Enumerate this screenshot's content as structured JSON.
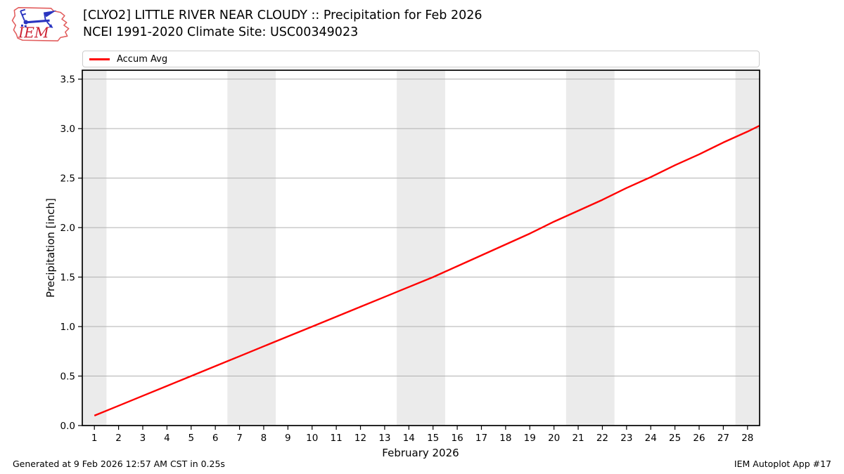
{
  "header": {
    "logo_text": "IEM"
  },
  "legend": {
    "items": [
      {
        "label": "Accum Avg",
        "color": "#ff0000"
      }
    ]
  },
  "footer": {
    "generated": "Generated at 9 Feb 2026 12:57 AM CST in 0.25s",
    "app": "IEM Autoplot App #17"
  },
  "chart_data": {
    "type": "line",
    "title": "[CLYO2] LITTLE RIVER NEAR CLOUDY :: Precipitation for Feb 2026",
    "subtitle": "NCEI 1991-2020 Climate Site: USC00349023",
    "xlabel": "February 2026",
    "ylabel": "Precipitation [inch]",
    "xlim": [
      0.5,
      28.5
    ],
    "ylim": [
      0,
      3.59
    ],
    "xticks": [
      1,
      2,
      3,
      4,
      5,
      6,
      7,
      8,
      9,
      10,
      11,
      12,
      13,
      14,
      15,
      16,
      17,
      18,
      19,
      20,
      21,
      22,
      23,
      24,
      25,
      26,
      27,
      28
    ],
    "yticks": [
      0,
      0.5,
      1,
      1.5,
      2,
      2.5,
      3,
      3.5
    ],
    "grid": "horizontal",
    "legend_position": "top",
    "weekend_bands": [
      [
        0.5,
        1.5
      ],
      [
        6.5,
        8.5
      ],
      [
        13.5,
        15.5
      ],
      [
        20.5,
        22.5
      ],
      [
        27.5,
        28.5
      ]
    ],
    "colors": {
      "line": "#ff0000",
      "band": "#ebebeb",
      "grid": "#b0b0b0",
      "spine": "#000000"
    },
    "series": [
      {
        "name": "Accum Avg",
        "color": "#ff0000",
        "x": [
          1,
          2,
          3,
          4,
          5,
          6,
          7,
          8,
          9,
          10,
          11,
          12,
          13,
          14,
          15,
          16,
          17,
          18,
          19,
          20,
          21,
          22,
          23,
          24,
          25,
          26,
          27,
          28,
          28.5
        ],
        "values": [
          0.1,
          0.2,
          0.3,
          0.4,
          0.5,
          0.6,
          0.7,
          0.8,
          0.9,
          1.0,
          1.1,
          1.2,
          1.3,
          1.4,
          1.5,
          1.61,
          1.72,
          1.83,
          1.94,
          2.06,
          2.17,
          2.28,
          2.4,
          2.51,
          2.63,
          2.74,
          2.86,
          2.97,
          3.03
        ]
      }
    ]
  }
}
